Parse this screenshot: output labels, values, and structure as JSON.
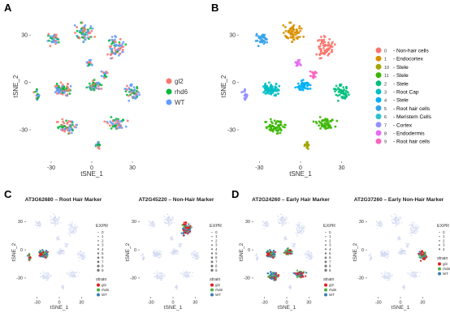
{
  "panels": {
    "A": {
      "letter": "A"
    },
    "B": {
      "letter": "B"
    },
    "C": {
      "letter": "C"
    },
    "D": {
      "letter": "D"
    }
  },
  "chart_data": [
    {
      "id": "A",
      "type": "scatter",
      "title": "",
      "xlabel": "tSNE_1",
      "ylabel": "tSNE_2",
      "xticks": [
        "-30",
        "0",
        "30"
      ],
      "yticks": [
        "30",
        "0",
        "-30"
      ],
      "xlim": [
        -45,
        45
      ],
      "ylim": [
        -50,
        45
      ],
      "legend_position": "right",
      "series": [
        {
          "name": "gl2",
          "color": "#F8766D"
        },
        {
          "name": "rhd6",
          "color": "#00BA38"
        },
        {
          "name": "WT",
          "color": "#619CFF"
        }
      ]
    },
    {
      "id": "B",
      "type": "scatter",
      "title": "",
      "xlabel": "tSNE_1",
      "ylabel": "tSNE_2",
      "xticks": [
        "-30",
        "0",
        "30"
      ],
      "yticks": [
        "30",
        "0",
        "-30"
      ],
      "xlim": [
        -45,
        45
      ],
      "ylim": [
        -50,
        45
      ],
      "legend_position": "right",
      "clusters": [
        {
          "id": "0",
          "label": "- Non-hair cells",
          "color": "#F8766D"
        },
        {
          "id": "1",
          "label": "- Endocortex",
          "color": "#D89000"
        },
        {
          "id": "10",
          "label": "- Stele",
          "color": "#A3A500"
        },
        {
          "id": "11",
          "label": "- Stele",
          "color": "#39B600"
        },
        {
          "id": "2",
          "label": "- Stele",
          "color": "#00BF7D"
        },
        {
          "id": "3",
          "label": "- Root Cap",
          "color": "#00BFC4"
        },
        {
          "id": "4",
          "label": "- Stele",
          "color": "#00B0F6"
        },
        {
          "id": "5",
          "label": "- Root hair cells",
          "color": "#35A2E8"
        },
        {
          "id": "6",
          "label": "- Meristem Cells",
          "color": "#2FC1C8"
        },
        {
          "id": "7",
          "label": "- Cortex",
          "color": "#9590FF"
        },
        {
          "id": "8",
          "label": "- Endodermis",
          "color": "#E76BF3"
        },
        {
          "id": "9",
          "label": "- Root hair cells",
          "color": "#FF62BC"
        }
      ]
    },
    {
      "id": "C1",
      "type": "scatter",
      "title": "AT3G62680 – Root Hair Marker",
      "xlabel": "tSNE_1",
      "ylabel": "tSNE_2",
      "xticks": [
        "-30",
        "0",
        "30"
      ],
      "yticks": [
        "30",
        "0",
        "-30"
      ],
      "legend_title_expr": "EXPR",
      "expr_levels": [
        "0",
        "1",
        "2",
        "3",
        "4",
        "5",
        "6",
        "7",
        "8",
        "9"
      ],
      "legend_title_strain": "strain",
      "strains": [
        {
          "name": "gl2",
          "color": "#E41A1C"
        },
        {
          "name": "rhd6",
          "color": "#4DAF4A"
        },
        {
          "name": "WT",
          "color": "#377EB8"
        }
      ]
    },
    {
      "id": "C2",
      "type": "scatter",
      "title": "AT2G45220 – Non-Hair Marker",
      "xlabel": "tSNE_1",
      "ylabel": "tSNE_2",
      "xticks": [
        "-30",
        "0",
        "30"
      ],
      "yticks": [
        "30",
        "0",
        "-30"
      ],
      "legend_title_expr": "EXPR",
      "expr_levels": [
        "0",
        "1",
        "2",
        "3",
        "4",
        "5",
        "6",
        "7",
        "8",
        "9"
      ],
      "legend_title_strain": "strain",
      "strains": [
        {
          "name": "gl2",
          "color": "#E41A1C"
        },
        {
          "name": "rhd6",
          "color": "#4DAF4A"
        },
        {
          "name": "WT",
          "color": "#377EB8"
        }
      ]
    },
    {
      "id": "D1",
      "type": "scatter",
      "title": "AT2G24260 – Early Hair Marker",
      "xlabel": "tSNE_1",
      "ylabel": "tSNE_2",
      "xticks": [
        "-30",
        "0",
        "30"
      ],
      "yticks": [
        "30",
        "0",
        "-30"
      ],
      "legend_title_expr": "EXPR",
      "expr_levels": [
        "0",
        "1",
        "2",
        "3",
        "4",
        "5",
        "6",
        "7",
        "8",
        "9"
      ],
      "legend_title_strain": "strain",
      "strains": [
        {
          "name": "gl2",
          "color": "#E41A1C"
        },
        {
          "name": "rhd6",
          "color": "#4DAF4A"
        },
        {
          "name": "WT",
          "color": "#377EB8"
        }
      ]
    },
    {
      "id": "D2",
      "type": "scatter",
      "title": "AT2G37260 – Early Non-Hair Marker",
      "xlabel": "tSNE_1",
      "ylabel": "tSNE_2",
      "xticks": [
        "-30",
        "0",
        "30"
      ],
      "yticks": [
        "30",
        "0",
        "-30"
      ],
      "legend_title_expr": "EXPR",
      "expr_levels": [
        "0",
        "1",
        "2",
        "3",
        "4"
      ],
      "legend_title_strain": "strain",
      "strains": [
        {
          "name": "gl2",
          "color": "#E41A1C"
        },
        {
          "name": "rhd6",
          "color": "#4DAF4A"
        },
        {
          "name": "WT",
          "color": "#377EB8"
        }
      ]
    }
  ]
}
